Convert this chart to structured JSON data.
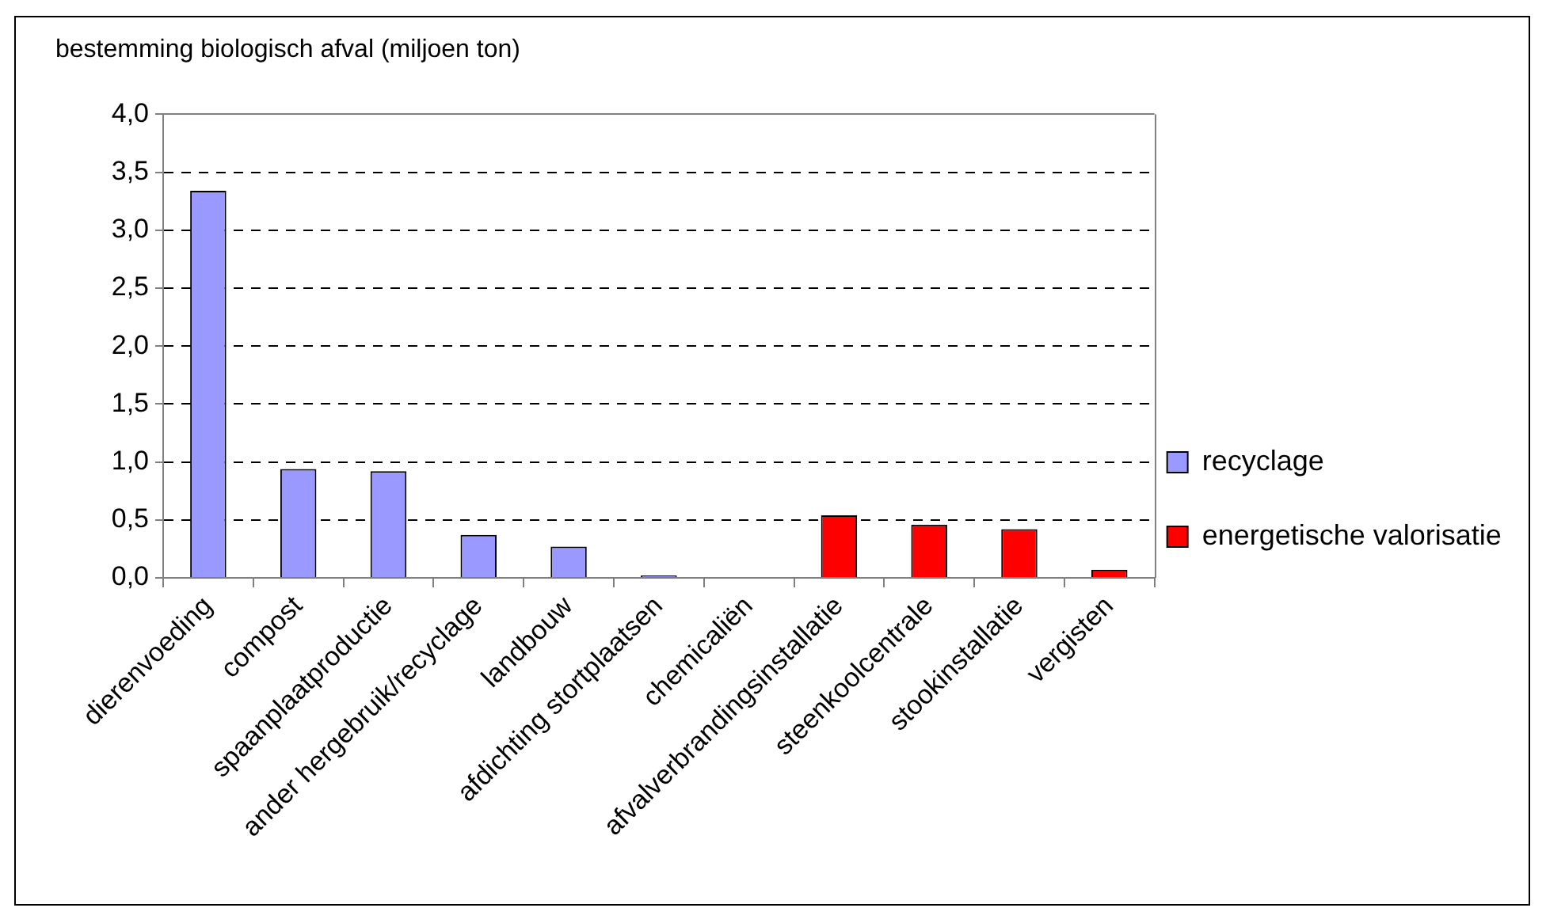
{
  "chart_data": {
    "type": "bar",
    "title": "bestemming biologisch afval (miljoen ton)",
    "categories": [
      "dierenvoeding",
      "compost",
      "spaanplaatproductie",
      "ander hergebruik/recyclage",
      "landbouw",
      "afdichting stortplaatsen",
      "chemicaliën",
      "afvalverbrandingsinstallatie",
      "steenkoolcentrale",
      "stookinstallatie",
      "vergisten"
    ],
    "series": [
      {
        "name": "recyclage",
        "color": "#9999ff",
        "values": [
          3.34,
          0.94,
          0.92,
          0.37,
          0.27,
          0.02,
          0,
          null,
          null,
          null,
          null
        ]
      },
      {
        "name": "energetische valorisatie",
        "color": "#ff0000",
        "values": [
          null,
          null,
          null,
          null,
          null,
          null,
          null,
          0.54,
          0.46,
          0.42,
          0.07
        ]
      }
    ],
    "ylim": [
      0,
      4
    ],
    "yticks": [
      {
        "value": 0,
        "label": "0,0"
      },
      {
        "value": 0.5,
        "label": "0,5"
      },
      {
        "value": 1,
        "label": "1,0"
      },
      {
        "value": 1.5,
        "label": "1,5"
      },
      {
        "value": 2,
        "label": "2,0"
      },
      {
        "value": 2.5,
        "label": "2,5"
      },
      {
        "value": 3,
        "label": "3,0"
      },
      {
        "value": 3.5,
        "label": "3,5"
      },
      {
        "value": 4,
        "label": "4,0"
      }
    ],
    "grid": "y",
    "legend": "right"
  }
}
